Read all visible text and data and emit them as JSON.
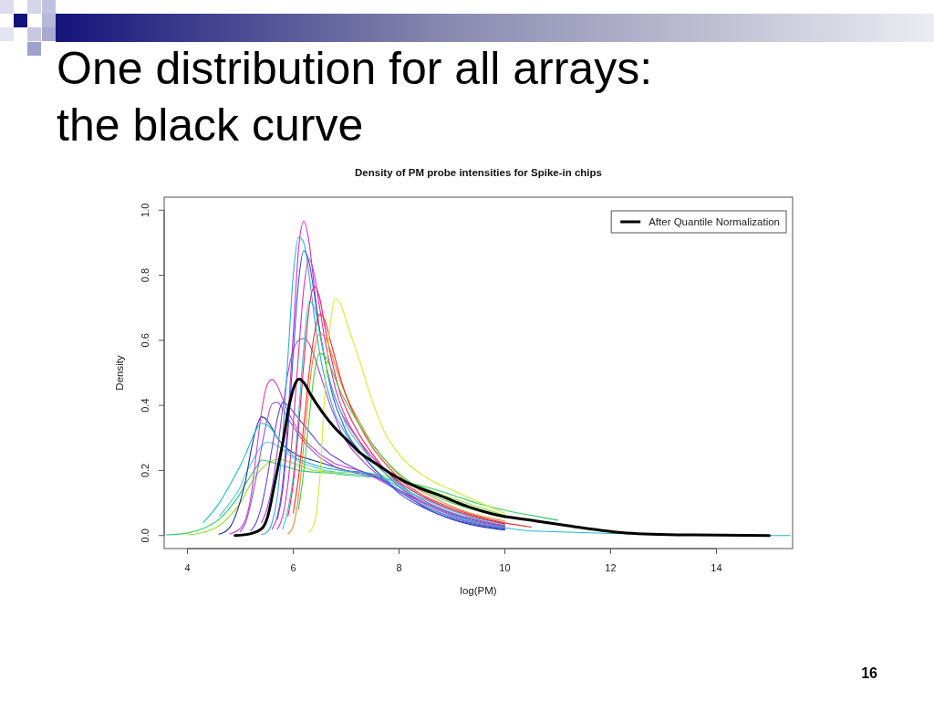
{
  "chart_data": {
    "type": "line",
    "title": "One distribution for all arrays: the black curve",
    "subtitle": "Density of PM probe intensities for Spike-in chips",
    "xlabel": "log(PM)",
    "ylabel": "Density",
    "annotations": [
      "16"
    ],
    "x": [
      3.6,
      4.0,
      4.3,
      4.6,
      4.8,
      5.0,
      5.1,
      5.2,
      5.3,
      5.4,
      5.5,
      5.6,
      5.7,
      5.8,
      5.9,
      6.0,
      6.1,
      6.2,
      6.3,
      6.4,
      6.5,
      6.6,
      6.7,
      6.8,
      6.9,
      7.0,
      7.25,
      7.5,
      7.75,
      8.0,
      8.5,
      9.0,
      9.5,
      10.0,
      10.5,
      11.0
    ],
    "series": [
      {
        "color": "#33cc66",
        "values": [
          0.002,
          0.008,
          0.022,
          0.05,
          0.085,
          0.13,
          0.16,
          0.185,
          0.21,
          0.232,
          0.23,
          0.225,
          0.22,
          0.215,
          0.21,
          0.205,
          0.2,
          0.198,
          0.196,
          0.195,
          0.194,
          0.193,
          0.192,
          0.19,
          0.188,
          0.186,
          0.183,
          0.18,
          0.175,
          0.168,
          0.15,
          0.125,
          0.098,
          0.078,
          0.062,
          0.047
        ]
      },
      {
        "color": "#55ccdd",
        "values": [
          null,
          null,
          null,
          0.06,
          0.1,
          0.15,
          0.19,
          0.22,
          0.25,
          0.275,
          0.287,
          0.285,
          0.275,
          0.265,
          0.25,
          0.24,
          0.23,
          0.22,
          0.215,
          0.21,
          0.205,
          0.2,
          0.198,
          0.195,
          0.192,
          0.19,
          0.188,
          0.185,
          0.175,
          0.16,
          0.115,
          0.078,
          0.05,
          0.031,
          null,
          null
        ]
      },
      {
        "color": "#99dd33",
        "values": [
          null,
          0.002,
          0.01,
          0.03,
          0.06,
          0.1,
          0.13,
          0.16,
          0.185,
          0.205,
          0.22,
          0.23,
          0.235,
          0.233,
          0.228,
          0.222,
          0.216,
          0.21,
          0.205,
          0.2,
          0.198,
          0.196,
          0.195,
          0.195,
          0.195,
          0.195,
          0.195,
          0.19,
          0.182,
          0.172,
          0.145,
          0.115,
          0.088,
          0.062,
          null,
          null
        ]
      },
      {
        "color": "#223399",
        "values": [
          null,
          null,
          null,
          0.004,
          0.025,
          0.106,
          0.17,
          0.26,
          0.33,
          0.365,
          0.355,
          0.33,
          0.3,
          0.28,
          0.265,
          0.255,
          0.245,
          0.24,
          0.235,
          0.23,
          0.225,
          0.22,
          0.215,
          0.21,
          0.205,
          0.2,
          0.195,
          0.185,
          0.165,
          0.14,
          0.085,
          0.05,
          0.029,
          0.017,
          null,
          null
        ]
      },
      {
        "color": "#cc44cc",
        "values": [
          null,
          null,
          null,
          null,
          0.005,
          0.022,
          0.05,
          0.12,
          0.25,
          0.38,
          0.46,
          0.48,
          0.46,
          0.42,
          0.38,
          0.35,
          0.32,
          0.3,
          0.28,
          0.265,
          0.25,
          0.24,
          0.23,
          0.22,
          0.215,
          0.21,
          0.2,
          0.185,
          0.165,
          0.14,
          0.095,
          0.062,
          0.04,
          0.025,
          null,
          null
        ]
      },
      {
        "color": "#9955dd",
        "values": [
          null,
          null,
          null,
          null,
          null,
          0.012,
          0.04,
          0.1,
          0.18,
          0.27,
          0.35,
          0.405,
          0.41,
          0.39,
          0.36,
          0.335,
          0.31,
          0.29,
          0.27,
          0.255,
          0.24,
          0.23,
          0.22,
          0.21,
          0.205,
          0.2,
          0.19,
          0.18,
          0.16,
          0.135,
          0.09,
          0.057,
          0.035,
          0.021,
          null,
          null
        ]
      },
      {
        "color": "#6644dd",
        "values": [
          null,
          null,
          null,
          null,
          null,
          null,
          null,
          0.015,
          0.04,
          0.09,
          0.17,
          0.27,
          0.36,
          0.41,
          0.4,
          0.38,
          0.36,
          0.34,
          0.32,
          0.3,
          0.28,
          0.265,
          0.25,
          0.24,
          0.23,
          0.22,
          0.2,
          0.185,
          0.165,
          0.14,
          0.1,
          0.067,
          0.044,
          0.028,
          null,
          null
        ]
      },
      {
        "color": "#aa44cc",
        "values": [
          null,
          null,
          null,
          null,
          null,
          null,
          null,
          null,
          null,
          0.04,
          0.08,
          0.15,
          0.26,
          0.39,
          0.5,
          0.57,
          0.6,
          0.606,
          0.59,
          0.55,
          0.5,
          0.45,
          0.4,
          0.36,
          0.32,
          0.29,
          0.24,
          0.2,
          0.165,
          0.135,
          0.088,
          0.056,
          0.035,
          0.022,
          null,
          null
        ]
      },
      {
        "color": "#33aadd",
        "values": [
          null,
          null,
          null,
          null,
          null,
          null,
          null,
          null,
          null,
          0.003,
          0.01,
          0.04,
          0.12,
          0.3,
          0.55,
          0.8,
          0.918,
          0.9,
          0.8,
          0.67,
          0.56,
          0.48,
          0.42,
          0.37,
          0.34,
          0.31,
          0.26,
          0.21,
          0.17,
          0.14,
          0.09,
          0.058,
          0.038,
          0.024,
          null,
          null
        ]
      },
      {
        "color": "#cc33cc",
        "values": [
          null,
          null,
          null,
          null,
          null,
          null,
          null,
          null,
          null,
          null,
          null,
          0.02,
          0.06,
          0.16,
          0.36,
          0.62,
          0.88,
          0.966,
          0.9,
          0.76,
          0.63,
          0.54,
          0.47,
          0.42,
          0.38,
          0.35,
          0.29,
          0.24,
          0.2,
          0.16,
          0.105,
          0.07,
          0.047,
          0.03,
          null,
          null
        ]
      },
      {
        "color": "#3355dd",
        "values": [
          null,
          null,
          null,
          null,
          null,
          null,
          null,
          null,
          null,
          null,
          null,
          null,
          0.05,
          0.14,
          0.32,
          0.56,
          0.78,
          0.875,
          0.84,
          0.74,
          0.63,
          0.54,
          0.46,
          0.4,
          0.36,
          0.32,
          0.26,
          0.21,
          0.17,
          0.13,
          0.083,
          0.052,
          0.032,
          0.02,
          null,
          null
        ]
      },
      {
        "color": "#dd33aa",
        "values": [
          null,
          null,
          null,
          null,
          null,
          null,
          null,
          null,
          null,
          null,
          null,
          null,
          0.02,
          0.06,
          0.16,
          0.34,
          0.56,
          0.76,
          0.85,
          0.8,
          0.7,
          0.6,
          0.52,
          0.45,
          0.4,
          0.36,
          0.29,
          0.23,
          0.19,
          0.15,
          0.098,
          0.064,
          0.041,
          0.026,
          null,
          null
        ]
      },
      {
        "color": "#33ccbb",
        "values": [
          null,
          null,
          null,
          null,
          null,
          null,
          null,
          null,
          null,
          null,
          null,
          null,
          null,
          0.02,
          0.08,
          0.18,
          0.37,
          0.58,
          0.72,
          0.7,
          0.62,
          0.54,
          0.47,
          0.42,
          0.38,
          0.34,
          0.28,
          0.23,
          0.19,
          0.155,
          0.11,
          0.076,
          0.052,
          0.034,
          null,
          null
        ]
      },
      {
        "color": "#ee2266",
        "values": [
          null,
          null,
          null,
          null,
          null,
          null,
          null,
          null,
          null,
          null,
          null,
          null,
          null,
          null,
          0.06,
          0.16,
          0.33,
          0.53,
          0.7,
          0.766,
          0.73,
          0.64,
          0.56,
          0.49,
          0.43,
          0.39,
          0.31,
          0.25,
          0.2,
          0.165,
          0.115,
          0.08,
          0.055,
          0.036,
          null,
          null
        ]
      },
      {
        "color": "#ee8833",
        "values": [
          null,
          null,
          null,
          null,
          null,
          null,
          null,
          null,
          null,
          null,
          null,
          null,
          null,
          null,
          0.005,
          0.03,
          0.12,
          0.28,
          0.45,
          0.57,
          0.62,
          0.61,
          0.57,
          0.52,
          0.47,
          0.43,
          0.35,
          0.28,
          0.23,
          0.185,
          0.13,
          0.09,
          0.062,
          0.045,
          null,
          null
        ]
      },
      {
        "color": "#ee3333",
        "values": [
          null,
          null,
          null,
          null,
          null,
          null,
          null,
          null,
          null,
          null,
          null,
          null,
          null,
          null,
          null,
          0.07,
          0.18,
          0.34,
          0.5,
          0.62,
          0.68,
          0.66,
          0.6,
          0.54,
          0.48,
          0.43,
          0.34,
          0.27,
          0.22,
          0.175,
          0.12,
          0.085,
          0.058,
          0.039,
          0.026,
          null
        ]
      },
      {
        "color": "#44cc44",
        "values": [
          null,
          null,
          null,
          null,
          null,
          null,
          null,
          null,
          null,
          null,
          null,
          null,
          null,
          null,
          null,
          null,
          0.08,
          0.2,
          0.36,
          0.5,
          0.56,
          0.55,
          0.52,
          0.48,
          0.44,
          0.41,
          0.34,
          0.28,
          0.23,
          0.19,
          0.135,
          0.1,
          0.075,
          0.055,
          null,
          null
        ]
      },
      {
        "color": "#ccee33",
        "values": [
          null,
          null,
          null,
          null,
          null,
          null,
          null,
          null,
          null,
          null,
          null,
          null,
          null,
          null,
          null,
          null,
          null,
          null,
          0.01,
          0.04,
          0.17,
          0.45,
          0.65,
          0.728,
          0.71,
          0.66,
          0.54,
          0.41,
          0.31,
          0.25,
          0.18,
          0.14,
          0.104,
          0.068,
          null,
          null
        ]
      },
      {
        "color": "#22bbcc",
        "x": [
          4.3,
          4.6,
          4.8,
          5.0,
          5.1,
          5.2,
          5.3,
          5.4,
          5.5,
          5.6,
          5.7,
          5.8,
          5.9,
          6.0,
          6.1,
          6.2,
          6.3,
          6.4,
          6.5,
          6.6,
          6.7,
          6.8,
          6.9,
          7.0,
          7.25,
          7.5,
          7.75,
          8.0,
          8.5,
          9.0,
          9.5,
          10.0,
          10.5,
          15.1,
          15.4
        ],
        "values": [
          0.04,
          0.1,
          0.155,
          0.215,
          0.25,
          0.29,
          0.325,
          0.345,
          0.34,
          0.325,
          0.3,
          0.28,
          0.26,
          0.245,
          0.235,
          0.228,
          0.222,
          0.217,
          0.212,
          0.208,
          0.205,
          0.203,
          0.2,
          0.198,
          0.195,
          0.19,
          0.172,
          0.15,
          0.1,
          0.065,
          0.04,
          0.024,
          0.014,
          0,
          0
        ]
      },
      {
        "name": "After Quantile Normalization",
        "color": "#000000",
        "x": [
          4.9,
          5.2,
          5.41,
          5.52,
          5.64,
          5.81,
          5.93,
          6.02,
          6.11,
          6.2,
          6.33,
          6.56,
          6.79,
          7.02,
          7.25,
          7.59,
          7.94,
          8.28,
          8.74,
          9.32,
          9.78,
          10.58,
          11.2,
          11.73,
          12.3,
          13.45,
          15.0
        ],
        "values": [
          0,
          0.006,
          0.022,
          0.06,
          0.153,
          0.293,
          0.405,
          0.46,
          0.481,
          0.47,
          0.433,
          0.377,
          0.33,
          0.293,
          0.256,
          0.218,
          0.181,
          0.153,
          0.125,
          0.088,
          0.066,
          0.045,
          0.03,
          0.018,
          0.008,
          0.002,
          0
        ]
      }
    ],
    "xlim": [
      3.56,
      15.44
    ],
    "ylim": [
      -0.04,
      1.04
    ],
    "xticks": [
      4,
      6,
      8,
      10,
      12,
      14
    ],
    "yticks": [
      {
        "value": 0,
        "label": "0.0"
      },
      {
        "value": 0.2,
        "label": "0.2"
      },
      {
        "value": 0.4,
        "label": "0.4"
      },
      {
        "value": 0.6,
        "label": "0.6"
      },
      {
        "value": 0.8,
        "label": "0.8"
      },
      {
        "value": 1,
        "label": "1.0"
      }
    ],
    "legend": "top right"
  }
}
